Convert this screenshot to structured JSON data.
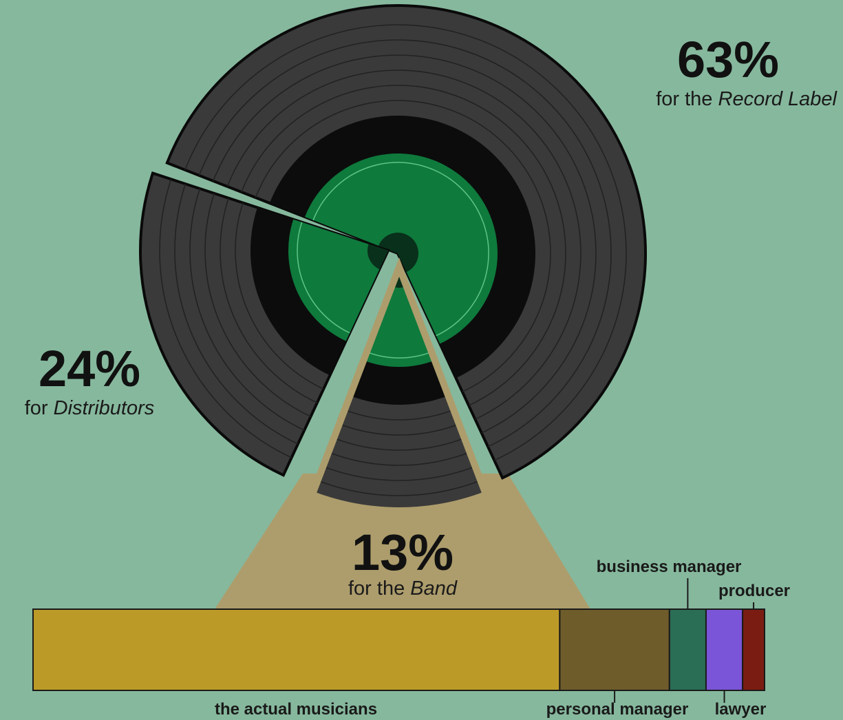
{
  "colors": {
    "background": "#86b89d",
    "vinyl": "#3a3a3a",
    "groove": "#222222",
    "label_green": "#0e7a3c",
    "band_wedge": "#ad9d6c"
  },
  "chart_data": [
    {
      "type": "pie",
      "slices": [
        {
          "value": 63,
          "pct_text": "63%",
          "prefix": "for the ",
          "label": "Record Label"
        },
        {
          "value": 24,
          "pct_text": "24%",
          "prefix": "for ",
          "label": "Distributors"
        },
        {
          "value": 13,
          "pct_text": "13%",
          "prefix": "for the ",
          "label": "Band"
        }
      ]
    },
    {
      "type": "bar",
      "orientation": "stacked-horizontal",
      "segments": [
        {
          "label": "the actual musicians",
          "value": 72,
          "color": "#bc9a27"
        },
        {
          "label": "personal manager",
          "value": 15,
          "color": "#6e5c2b"
        },
        {
          "label": "business manager",
          "value": 5,
          "color": "#2a6e55"
        },
        {
          "label": "lawyer",
          "value": 5,
          "color": "#7a55d8"
        },
        {
          "label": "producer",
          "value": 3,
          "color": "#7a1c12"
        }
      ]
    }
  ]
}
